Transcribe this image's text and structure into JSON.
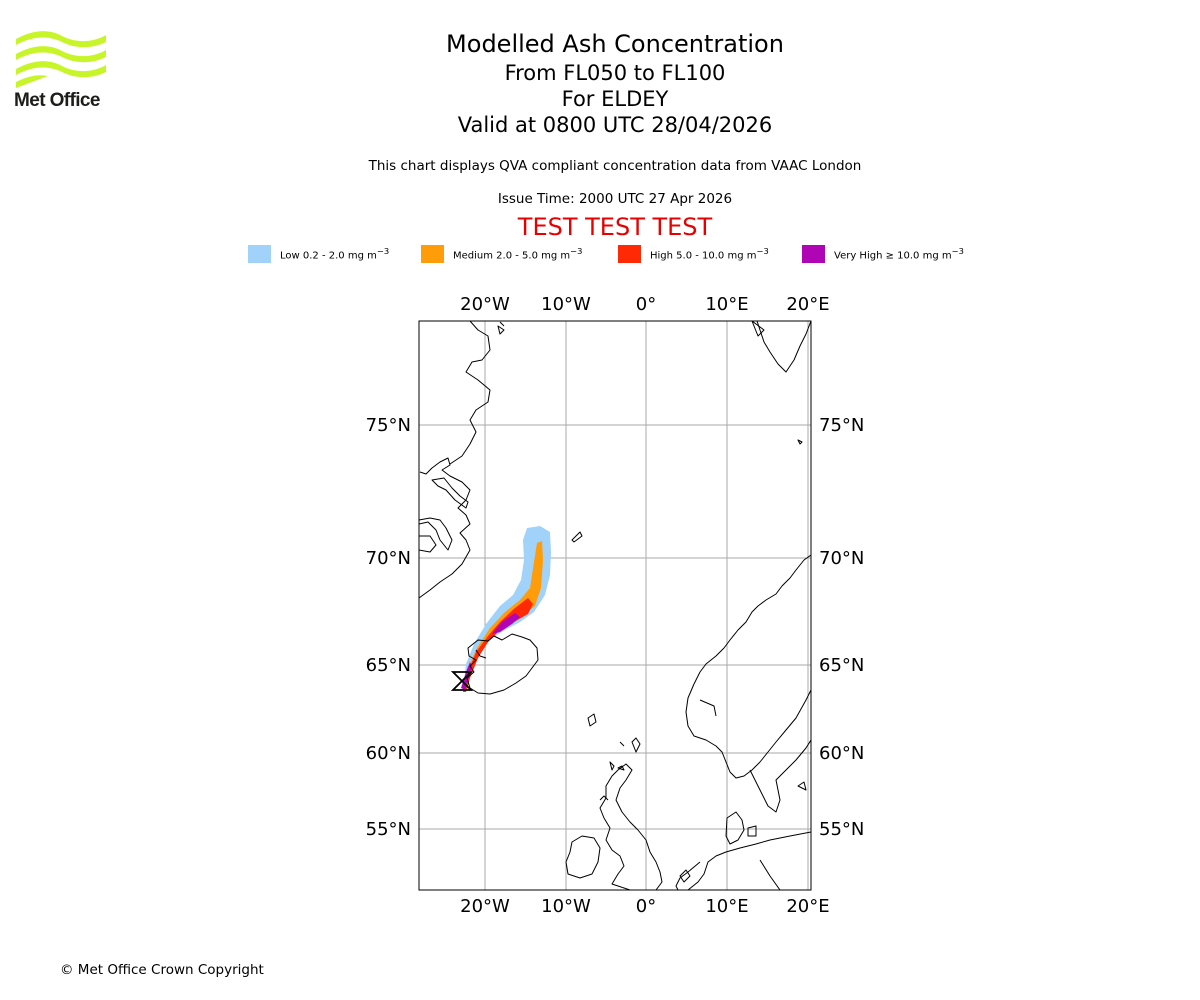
{
  "logo": {
    "text": "Met Office",
    "color": "#c8f52a"
  },
  "titles": {
    "main": "Modelled Ash Concentration",
    "levels": "From FL050 to FL100",
    "region": "For ELDEY",
    "valid": "Valid at 0800 UTC 28/04/2026"
  },
  "description": "This chart displays QVA compliant concentration data from VAAC London",
  "issue_time": "Issue Time: 2000 UTC 27 Apr 2026",
  "test_banner": "TEST TEST TEST",
  "legend": [
    {
      "label": "Low 0.2 - 2.0 mg m",
      "unit_sup": "−3",
      "color": "#a0d2fa"
    },
    {
      "label": "Medium 2.0 - 5.0 mg m",
      "unit_sup": "−3",
      "color": "#ff9c0a"
    },
    {
      "label": "High 5.0 - 10.0 mg m",
      "unit_sup": "−3",
      "color": "#ff2a05"
    },
    {
      "label": "Very High ≥ 10.0 mg m",
      "unit_sup": "−3",
      "color": "#b005b4"
    }
  ],
  "map": {
    "lon_ticks_top": [
      "20°W",
      "10°W",
      "0°",
      "10°E",
      "20°E"
    ],
    "lon_ticks_bottom": [
      "20°W",
      "10°W",
      "0°",
      "10°E",
      "20°E"
    ],
    "lat_ticks_left": [
      "75°N",
      "70°N",
      "65°N",
      "60°N",
      "55°N"
    ],
    "lat_ticks_right": [
      "75°N",
      "70°N",
      "65°N",
      "60°N",
      "55°N"
    ],
    "gridlines": true,
    "volcano_marker": "hourglass-symbol"
  },
  "copyright": "© Met Office Crown Copyright"
}
